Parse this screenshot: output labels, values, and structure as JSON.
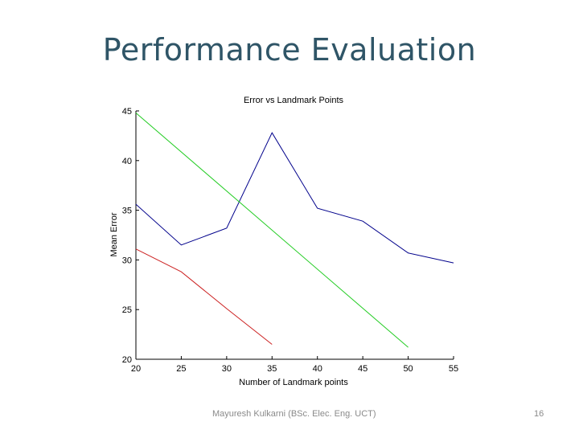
{
  "slide": {
    "title": "Performance Evaluation",
    "footer": "Mayuresh Kulkarni (BSc. Elec. Eng. UCT)",
    "page_number": "16"
  },
  "chart_data": {
    "type": "line",
    "title": "Error vs Landmark Points",
    "xlabel": "Number of Landmark points",
    "ylabel": "Mean Error",
    "xlim": [
      20,
      55
    ],
    "ylim": [
      20,
      45
    ],
    "xticks": [
      20,
      25,
      30,
      35,
      40,
      45,
      50,
      55
    ],
    "yticks": [
      20,
      25,
      30,
      35,
      40,
      45
    ],
    "grid": false,
    "series": [
      {
        "color": "#00008b",
        "x": [
          20,
          25,
          30,
          35,
          40,
          45,
          50,
          55
        ],
        "y": [
          35.6,
          31.5,
          33.2,
          42.8,
          35.2,
          33.9,
          30.7,
          29.7
        ]
      },
      {
        "color": "#22cc22",
        "x": [
          20,
          50
        ],
        "y": [
          44.8,
          21.2
        ]
      },
      {
        "color": "#cc2222",
        "x": [
          20,
          25,
          30,
          35
        ],
        "y": [
          31.1,
          28.8,
          25.1,
          21.5
        ]
      }
    ]
  }
}
